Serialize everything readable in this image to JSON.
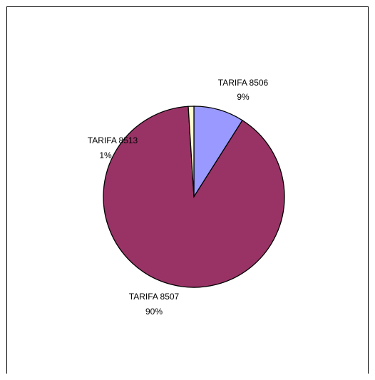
{
  "chart_data": {
    "type": "pie",
    "title": "",
    "slices": [
      {
        "name": "TARIFA 8506",
        "value": 9,
        "label": "9%",
        "color": "#9999ff"
      },
      {
        "name": "TARIFA 8507",
        "value": 90,
        "label": "90%",
        "color": "#993366"
      },
      {
        "name": "TARIFA 8513",
        "value": 1,
        "label": "1%",
        "color": "#ffffcc"
      }
    ],
    "start_angle_deg": 0,
    "direction": "clockwise",
    "legend": "none"
  }
}
